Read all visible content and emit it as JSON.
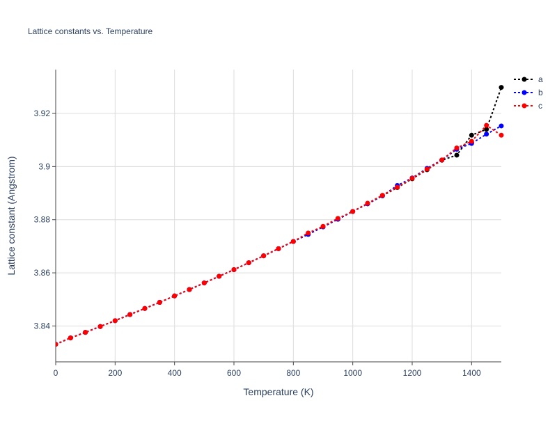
{
  "chart_data": {
    "type": "line",
    "title": "Lattice constants vs. Temperature",
    "xlabel": "Temperature (K)",
    "ylabel": "Lattice constant (Angstrom)",
    "xlim": [
      0,
      1500
    ],
    "ylim": [
      3.8265,
      3.9365
    ],
    "xticks": [
      0,
      200,
      400,
      600,
      800,
      1000,
      1200,
      1400
    ],
    "xtick_labels": [
      "0",
      "200",
      "400",
      "600",
      "800",
      "1000",
      "1200",
      "1400"
    ],
    "yticks": [
      3.84,
      3.86,
      3.88,
      3.9,
      3.92
    ],
    "ytick_labels": [
      "3.84",
      "3.86",
      "3.88",
      "3.9",
      "3.92"
    ],
    "grid": true,
    "legend_position": "top-right",
    "x": [
      0,
      50,
      100,
      150,
      200,
      250,
      300,
      350,
      400,
      450,
      500,
      550,
      600,
      650,
      700,
      750,
      800,
      850,
      900,
      950,
      1000,
      1050,
      1100,
      1150,
      1200,
      1250,
      1300,
      1350,
      1400,
      1450,
      1500
    ],
    "series": [
      {
        "name": "a",
        "color": "#000000",
        "values": [
          3.8331,
          3.8355,
          3.8376,
          3.8398,
          3.842,
          3.8443,
          3.8466,
          3.8489,
          3.8513,
          3.8537,
          3.8562,
          3.8587,
          3.8612,
          3.8638,
          3.8664,
          3.8691,
          3.8718,
          3.8745,
          3.8773,
          3.8802,
          3.8831,
          3.886,
          3.889,
          3.8921,
          3.8954,
          3.8988,
          3.9024,
          3.9043,
          3.9118,
          3.914,
          3.9298
        ]
      },
      {
        "name": "b",
        "color": "#0000ff",
        "values": [
          3.8331,
          3.8355,
          3.8376,
          3.8398,
          3.842,
          3.8443,
          3.8466,
          3.8489,
          3.8513,
          3.8537,
          3.8562,
          3.8587,
          3.8612,
          3.8638,
          3.8664,
          3.8691,
          3.8718,
          3.8745,
          3.8773,
          3.8802,
          3.8831,
          3.886,
          3.889,
          3.8929,
          3.8957,
          3.8993,
          3.9025,
          3.9065,
          3.9087,
          3.9122,
          3.9153
        ]
      },
      {
        "name": "c",
        "color": "#ff0000",
        "values": [
          3.8331,
          3.8355,
          3.8376,
          3.8398,
          3.842,
          3.8443,
          3.8466,
          3.8489,
          3.8513,
          3.8537,
          3.8562,
          3.8587,
          3.8612,
          3.8638,
          3.8664,
          3.8691,
          3.8718,
          3.875,
          3.8775,
          3.8805,
          3.8831,
          3.8862,
          3.8892,
          3.8922,
          3.8956,
          3.899,
          3.9025,
          3.907,
          3.9095,
          3.9155,
          3.9118
        ]
      }
    ]
  }
}
